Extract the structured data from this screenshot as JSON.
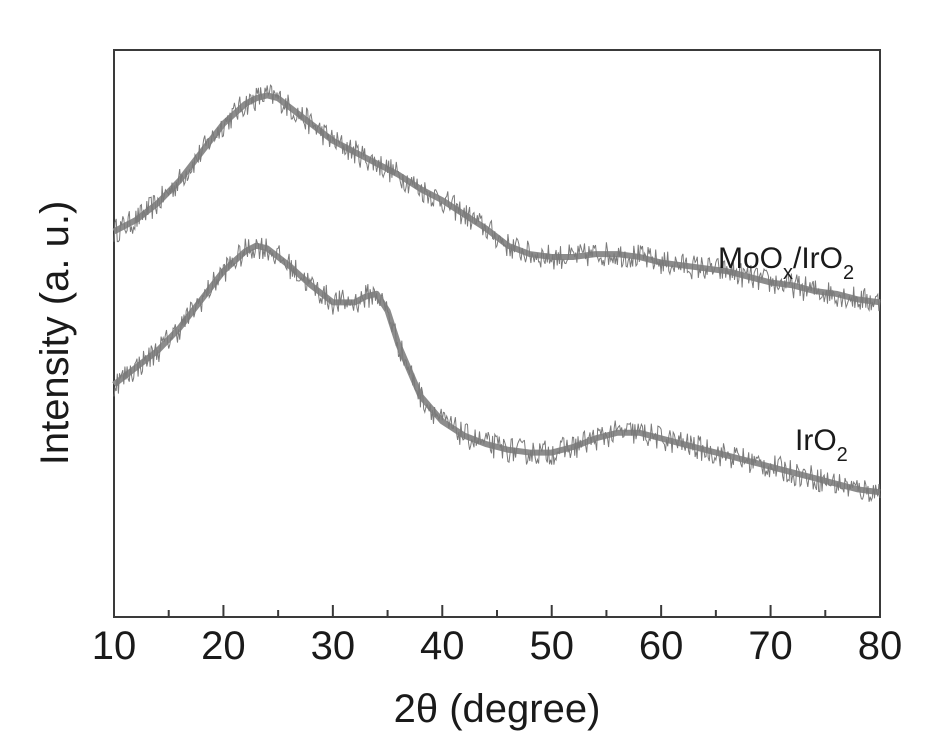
{
  "chart_data": {
    "type": "line",
    "title": "",
    "xlabel": "2θ (degree)",
    "ylabel": "Intensity (a. u.)",
    "xlim": [
      10,
      80
    ],
    "ylim": [
      0,
      1
    ],
    "xticks": [
      10,
      20,
      30,
      40,
      50,
      60,
      70,
      80
    ],
    "x_minor_ticks": [
      15,
      25,
      35,
      45,
      55,
      65,
      75
    ],
    "yticks_labels": false,
    "grid": false,
    "legend": "none",
    "series": [
      {
        "name": "MoOx/IrO2",
        "label": {
          "base": "MoO",
          "sub1": "x",
          "mid": "/IrO",
          "sub2": "2"
        },
        "color": "#8c8c8c",
        "x": [
          10,
          12,
          14,
          16,
          18,
          20,
          22,
          23,
          24,
          25,
          26,
          28,
          30,
          32,
          34,
          36,
          38,
          40,
          42,
          44,
          46,
          48,
          50,
          52,
          54,
          56,
          58,
          60,
          62,
          64,
          66,
          68,
          70,
          72,
          74,
          76,
          78,
          80
        ],
        "y": [
          0.68,
          0.7,
          0.73,
          0.77,
          0.82,
          0.87,
          0.905,
          0.915,
          0.92,
          0.915,
          0.9,
          0.87,
          0.84,
          0.82,
          0.8,
          0.78,
          0.755,
          0.735,
          0.71,
          0.685,
          0.655,
          0.64,
          0.635,
          0.635,
          0.64,
          0.64,
          0.635,
          0.625,
          0.62,
          0.615,
          0.61,
          0.6,
          0.59,
          0.585,
          0.575,
          0.57,
          0.56,
          0.555
        ]
      },
      {
        "name": "IrO2",
        "label": {
          "base": "IrO",
          "sub2": "2"
        },
        "color": "#8c8c8c",
        "x": [
          10,
          12,
          14,
          16,
          18,
          20,
          22,
          23,
          24,
          26,
          28,
          30,
          32,
          33,
          34,
          35,
          36,
          38,
          40,
          42,
          44,
          46,
          48,
          50,
          52,
          54,
          56,
          58,
          60,
          62,
          64,
          66,
          68,
          70,
          72,
          74,
          76,
          78,
          80
        ],
        "y": [
          0.41,
          0.44,
          0.47,
          0.51,
          0.56,
          0.61,
          0.645,
          0.655,
          0.65,
          0.62,
          0.585,
          0.555,
          0.555,
          0.565,
          0.57,
          0.54,
          0.48,
          0.39,
          0.345,
          0.32,
          0.305,
          0.295,
          0.29,
          0.29,
          0.3,
          0.315,
          0.325,
          0.325,
          0.315,
          0.305,
          0.295,
          0.285,
          0.275,
          0.265,
          0.255,
          0.245,
          0.235,
          0.225,
          0.22
        ]
      }
    ]
  }
}
